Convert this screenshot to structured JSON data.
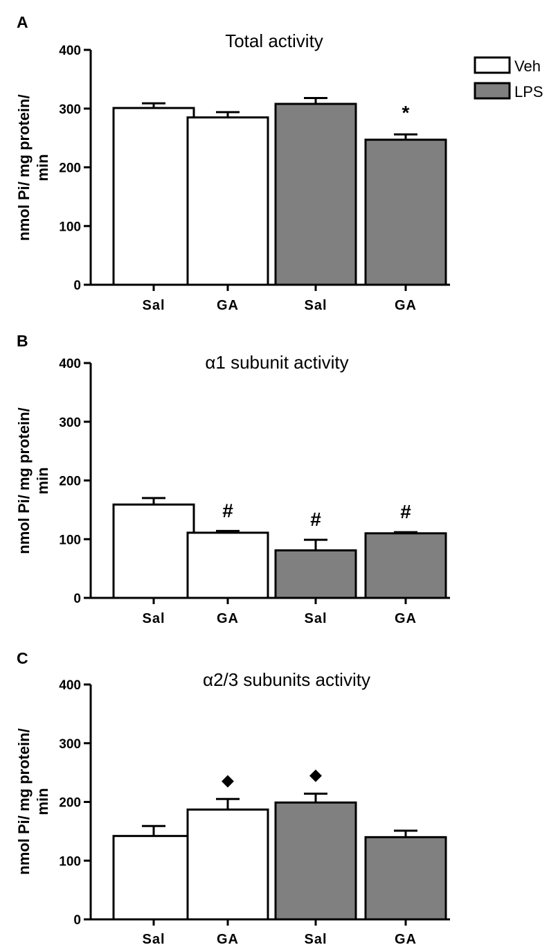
{
  "legend": {
    "entries": [
      {
        "label": "Veh",
        "color": "#ffffff"
      },
      {
        "label": "LPS",
        "color": "#808080"
      }
    ]
  },
  "chart_data": [
    {
      "type": "bar",
      "panel": "A",
      "title": "Total activity",
      "ylabel": "nmol Pi/ mg protein/ min",
      "ylim": [
        0,
        400
      ],
      "yticks": [
        0,
        100,
        200,
        300,
        400
      ],
      "categories": [
        "Sal",
        "GA",
        "Sal",
        "GA"
      ],
      "groups": [
        "Veh",
        "Veh",
        "LPS",
        "LPS"
      ],
      "values": [
        301,
        285,
        308,
        247
      ],
      "errors": [
        8,
        9,
        10,
        9
      ],
      "annotations": [
        "",
        "",
        "",
        "*"
      ]
    },
    {
      "type": "bar",
      "panel": "B",
      "title": "α1 subunit activity",
      "ylabel": "nmol Pi/ mg protein/ min",
      "ylim": [
        0,
        400
      ],
      "yticks": [
        0,
        100,
        200,
        300,
        400
      ],
      "categories": [
        "Sal",
        "GA",
        "Sal",
        "GA"
      ],
      "groups": [
        "Veh",
        "Veh",
        "LPS",
        "LPS"
      ],
      "values": [
        159,
        111,
        81,
        110
      ],
      "errors": [
        11,
        3,
        18,
        2
      ],
      "annotations": [
        "",
        "#",
        "#",
        "#"
      ]
    },
    {
      "type": "bar",
      "panel": "C",
      "title": "α2/3 subunits activity",
      "ylabel": "nmol Pi/ mg protein/ min",
      "ylim": [
        0,
        400
      ],
      "yticks": [
        0,
        100,
        200,
        300,
        400
      ],
      "categories": [
        "Sal",
        "GA",
        "Sal",
        "GA"
      ],
      "groups": [
        "Veh",
        "Veh",
        "LPS",
        "LPS"
      ],
      "values": [
        142,
        187,
        199,
        140
      ],
      "errors": [
        17,
        18,
        15,
        11
      ],
      "annotations": [
        "",
        "◆",
        "◆",
        ""
      ]
    }
  ]
}
